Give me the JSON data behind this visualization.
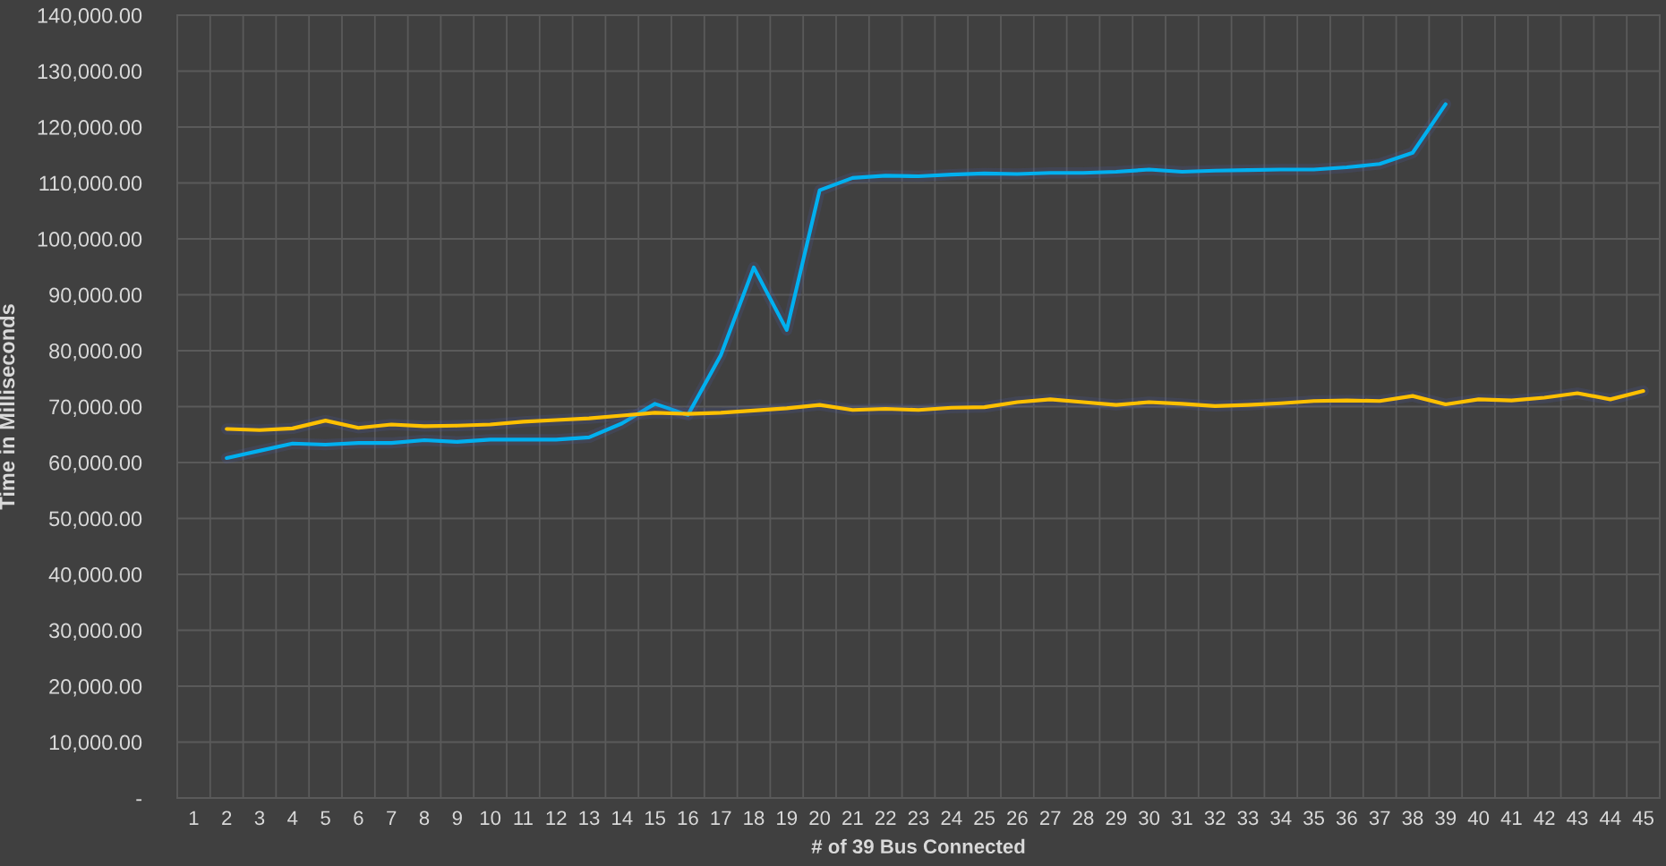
{
  "chart_data": {
    "type": "line",
    "xlabel": "# of 39 Bus Connected",
    "ylabel": "Time in Milliseconds",
    "categories": [
      "1",
      "2",
      "3",
      "4",
      "5",
      "6",
      "7",
      "8",
      "9",
      "10",
      "11",
      "12",
      "13",
      "14",
      "15",
      "16",
      "17",
      "18",
      "19",
      "20",
      "21",
      "22",
      "23",
      "24",
      "25",
      "26",
      "27",
      "28",
      "29",
      "30",
      "31",
      "32",
      "33",
      "34",
      "35",
      "36",
      "37",
      "38",
      "39",
      "40",
      "41",
      "42",
      "43",
      "44",
      "45"
    ],
    "series": [
      {
        "color": "#00b0f0",
        "values": [
          null,
          60800,
          62100,
          63400,
          63200,
          63500,
          63500,
          64000,
          63700,
          64100,
          64100,
          64100,
          64500,
          67000,
          70500,
          68500,
          79200,
          94900,
          83700,
          108700,
          110900,
          111300,
          111200,
          111500,
          111700,
          111600,
          111800,
          111800,
          112000,
          112400,
          112000,
          112200,
          112300,
          112400,
          112400,
          112800,
          113400,
          115400,
          124100,
          null,
          null,
          null,
          null,
          null,
          null
        ]
      },
      {
        "color": "#ffc000",
        "values": [
          null,
          66000,
          65800,
          66100,
          67500,
          66200,
          66800,
          66500,
          66600,
          66800,
          67300,
          67600,
          67900,
          68400,
          68900,
          68700,
          68900,
          69300,
          69700,
          70300,
          69400,
          69600,
          69400,
          69800,
          69900,
          70800,
          71300,
          70800,
          70300,
          70800,
          70500,
          70100,
          70300,
          70600,
          71000,
          71100,
          71000,
          71900,
          70400,
          71300,
          71100,
          71600,
          72400,
          71300,
          72800
        ]
      }
    ],
    "ylim": [
      0,
      140000
    ],
    "yticks": [
      {
        "value": 0,
        "label": "-"
      },
      {
        "value": 10000,
        "label": "10,000.00"
      },
      {
        "value": 20000,
        "label": "20,000.00"
      },
      {
        "value": 30000,
        "label": "30,000.00"
      },
      {
        "value": 40000,
        "label": "40,000.00"
      },
      {
        "value": 50000,
        "label": "50,000.00"
      },
      {
        "value": 60000,
        "label": "60,000.00"
      },
      {
        "value": 70000,
        "label": "70,000.00"
      },
      {
        "value": 80000,
        "label": "80,000.00"
      },
      {
        "value": 90000,
        "label": "90,000.00"
      },
      {
        "value": 100000,
        "label": "100,000.00"
      },
      {
        "value": 110000,
        "label": "110,000.00"
      },
      {
        "value": 120000,
        "label": "120,000.00"
      },
      {
        "value": 130000,
        "label": "130,000.00"
      },
      {
        "value": 140000,
        "label": "140,000.00"
      }
    ],
    "grid": true,
    "line_style": "solid"
  }
}
